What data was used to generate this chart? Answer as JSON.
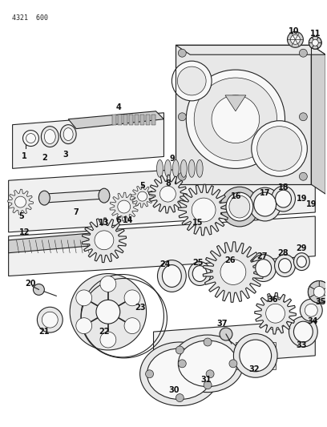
{
  "part_number_header": "4321  600",
  "bg_color": "#ffffff",
  "line_color": "#222222",
  "label_color": "#111111",
  "figsize": [
    4.08,
    5.33
  ],
  "dpi": 100,
  "fill_light": "#e8e8e8",
  "fill_mid": "#d0d0d0",
  "fill_dark": "#b8b8b8",
  "fill_white": "#f8f8f8"
}
